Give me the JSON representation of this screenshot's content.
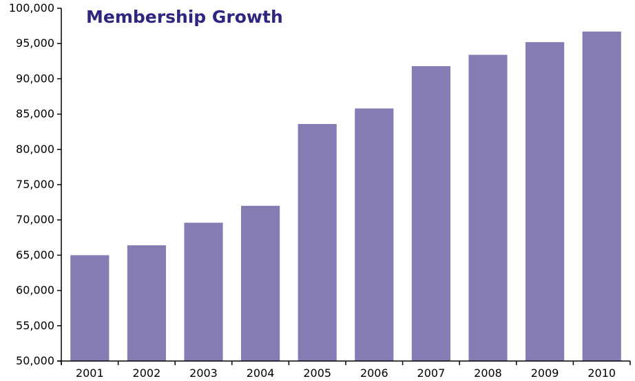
{
  "chart_data": {
    "type": "bar",
    "title": "Membership Growth",
    "xlabel": "",
    "ylabel": "",
    "categories": [
      "2001",
      "2002",
      "2003",
      "2004",
      "2005",
      "2006",
      "2007",
      "2008",
      "2009",
      "2010"
    ],
    "values": [
      65000,
      66400,
      69600,
      72000,
      83600,
      85800,
      91800,
      93400,
      95200,
      96700
    ],
    "ylim": [
      50000,
      100000
    ],
    "yticks": [
      50000,
      55000,
      60000,
      65000,
      70000,
      75000,
      80000,
      85000,
      90000,
      95000,
      100000
    ],
    "ytick_labels": [
      "50,000",
      "55,000",
      "60,000",
      "65,000",
      "70,000",
      "75,000",
      "80,000",
      "85,000",
      "90,000",
      "95,000",
      "100,000"
    ],
    "grid": false,
    "legend": "none",
    "colors": {
      "bar": "#847db4",
      "title": "#2e2680",
      "axis": "#000000"
    }
  }
}
